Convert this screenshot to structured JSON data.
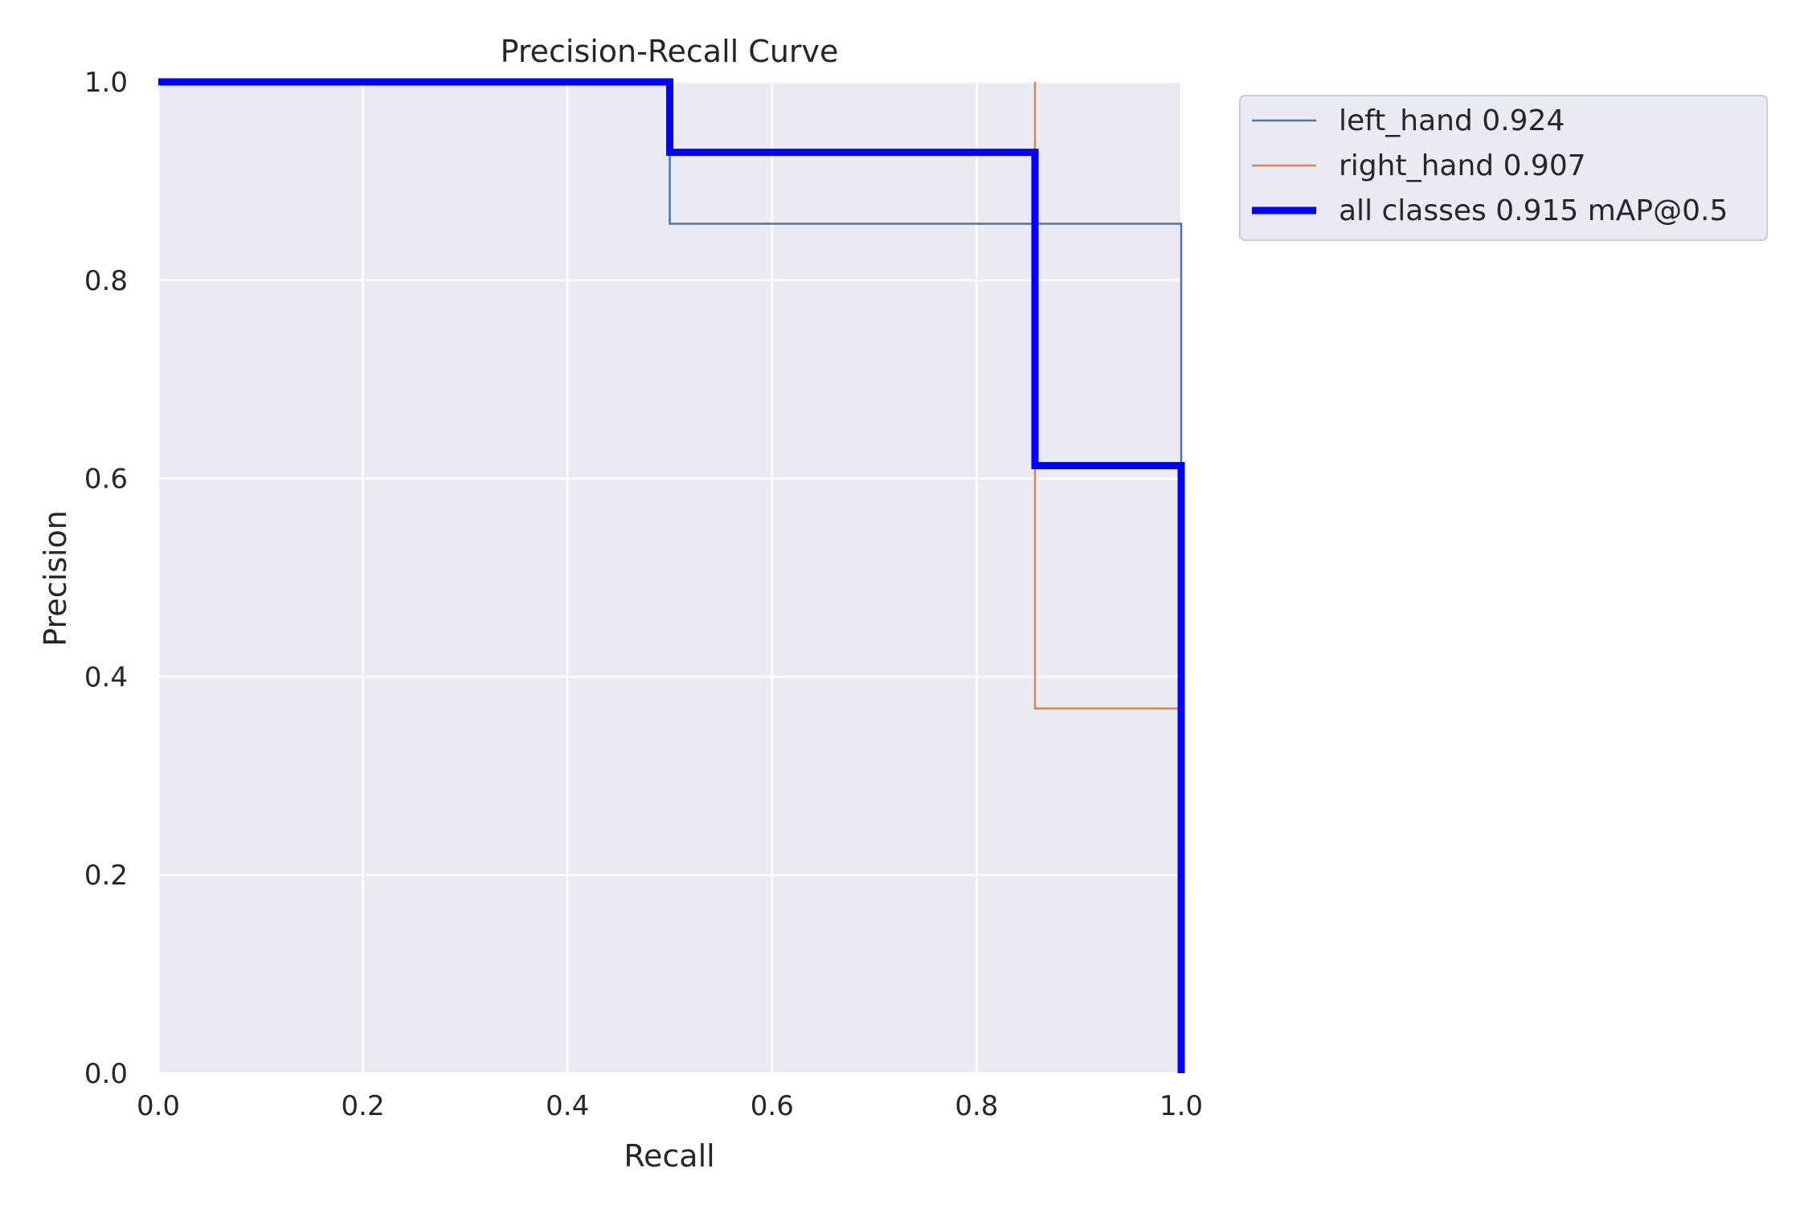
{
  "chart_data": {
    "type": "line",
    "title": "Precision-Recall Curve",
    "xlabel": "Recall",
    "ylabel": "Precision",
    "xlim": [
      0,
      1
    ],
    "ylim": [
      0,
      1
    ],
    "xticks": [
      0.0,
      0.2,
      0.4,
      0.6,
      0.8,
      1.0
    ],
    "yticks": [
      0.0,
      0.2,
      0.4,
      0.6,
      0.8,
      1.0
    ],
    "tick_labels": [
      "0.0",
      "0.2",
      "0.4",
      "0.6",
      "0.8",
      "1.0"
    ],
    "grid": true,
    "legend_position": "outside-upper-right",
    "background_color": "#eaeaf2",
    "series": [
      {
        "name": "left_hand 0.924",
        "color": "#4c72b0",
        "weight": "thin",
        "x": [
          0.0,
          0.5,
          0.5,
          1.0,
          1.0
        ],
        "y": [
          1.0,
          1.0,
          0.857,
          0.857,
          0.0
        ]
      },
      {
        "name": "right_hand 0.907",
        "color": "#dd8452",
        "weight": "thin",
        "x": [
          0.857,
          0.857,
          1.0,
          1.0
        ],
        "y": [
          1.0,
          0.368,
          0.368,
          0.0
        ]
      },
      {
        "name": "all classes 0.915 mAP@0.5",
        "color": "#0000ff",
        "weight": "thick",
        "x": [
          0.0,
          0.5,
          0.5,
          0.857,
          0.857,
          1.0,
          1.0
        ],
        "y": [
          1.0,
          1.0,
          0.929,
          0.929,
          0.613,
          0.613,
          0.0
        ]
      }
    ]
  }
}
